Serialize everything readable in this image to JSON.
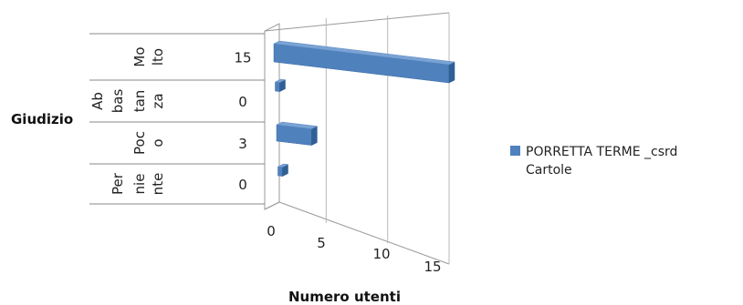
{
  "chart_data": {
    "type": "bar",
    "orientation": "horizontal",
    "three_d": true,
    "categories": [
      "Molto",
      "Abbastanza",
      "Poco",
      "Per niente"
    ],
    "category_label_lines": [
      [
        "Mo",
        "lto"
      ],
      [
        "Ab",
        "bas",
        "tan",
        "za"
      ],
      [
        "Poc",
        "o"
      ],
      [
        "Per",
        "nie",
        "nte"
      ]
    ],
    "series": [
      {
        "name": "PORRETTA TERME _csrd Cartole",
        "legend_lines": [
          "PORRETTA TERME _csrd",
          "Cartole"
        ],
        "values": [
          15,
          0,
          3,
          0
        ],
        "color": "#4f81bd"
      }
    ],
    "value_labels": [
      "15",
      "0",
      "3",
      "0"
    ],
    "xlabel": "Numero utenti",
    "ylabel": "Giudizio",
    "xlim": [
      0,
      15
    ],
    "x_ticks": [
      "0",
      "5",
      "10",
      "15"
    ],
    "grid": true,
    "legend_position": "right"
  }
}
